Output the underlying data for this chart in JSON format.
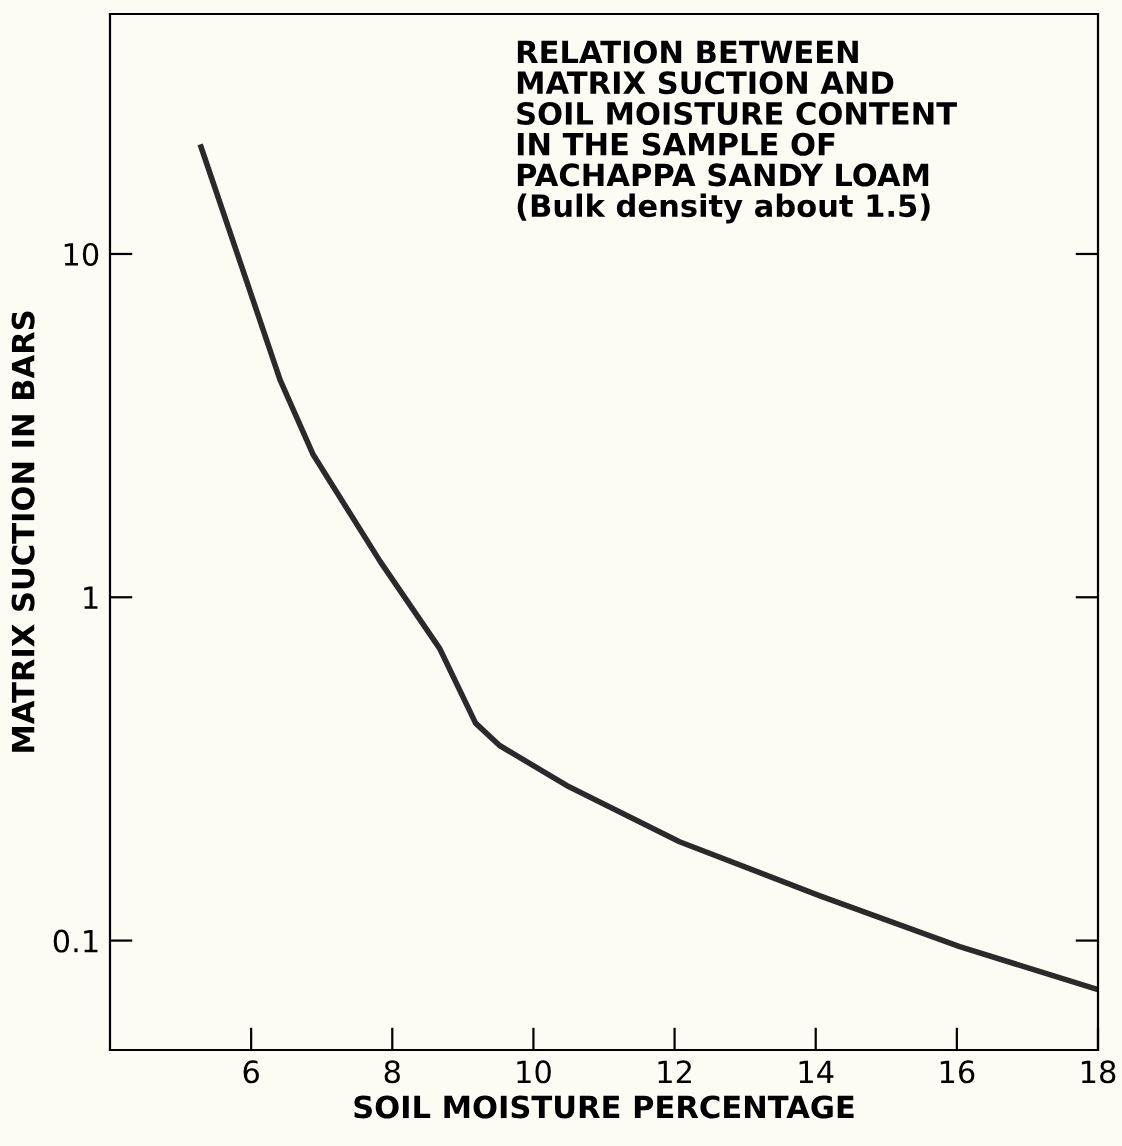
{
  "chart_data": {
    "type": "line",
    "xlabel": "SOIL MOISTURE PERCENTAGE",
    "ylabel": "MATRIX SUCTION IN BARS",
    "annotations": [
      "RELATION BETWEEN\nMATRIX SUCTION AND\nSOIL MOISTURE CONTENT\nIN THE SAMPLE OF\nPACHAPPA SANDY LOAM\n(Bulk density about 1.5)"
    ],
    "log": "y",
    "xlim": [
      4,
      18
    ],
    "ylim": [
      0.048,
      50
    ],
    "xticks": [
      6,
      8,
      10,
      12,
      14,
      16,
      18
    ],
    "yticks": [
      {
        "value": 0.1,
        "label": "0.1"
      },
      {
        "value": 1,
        "label": "1"
      },
      {
        "value": 10,
        "label": "10"
      }
    ],
    "grid": false,
    "marker": "none",
    "line_style": "solid",
    "series": [
      {
        "color": "#2a2a2a",
        "x": [
          5.29,
          5.93,
          6.41,
          6.88,
          7.83,
          8.67,
          9.18,
          9.52,
          10.47,
          12.07,
          14.06,
          16.04,
          18
        ],
        "values": [
          20.5,
          8.4,
          4.3,
          2.6,
          1.27,
          0.71,
          0.43,
          0.37,
          0.283,
          0.194,
          0.135,
          0.096,
          0.072
        ]
      }
    ]
  }
}
